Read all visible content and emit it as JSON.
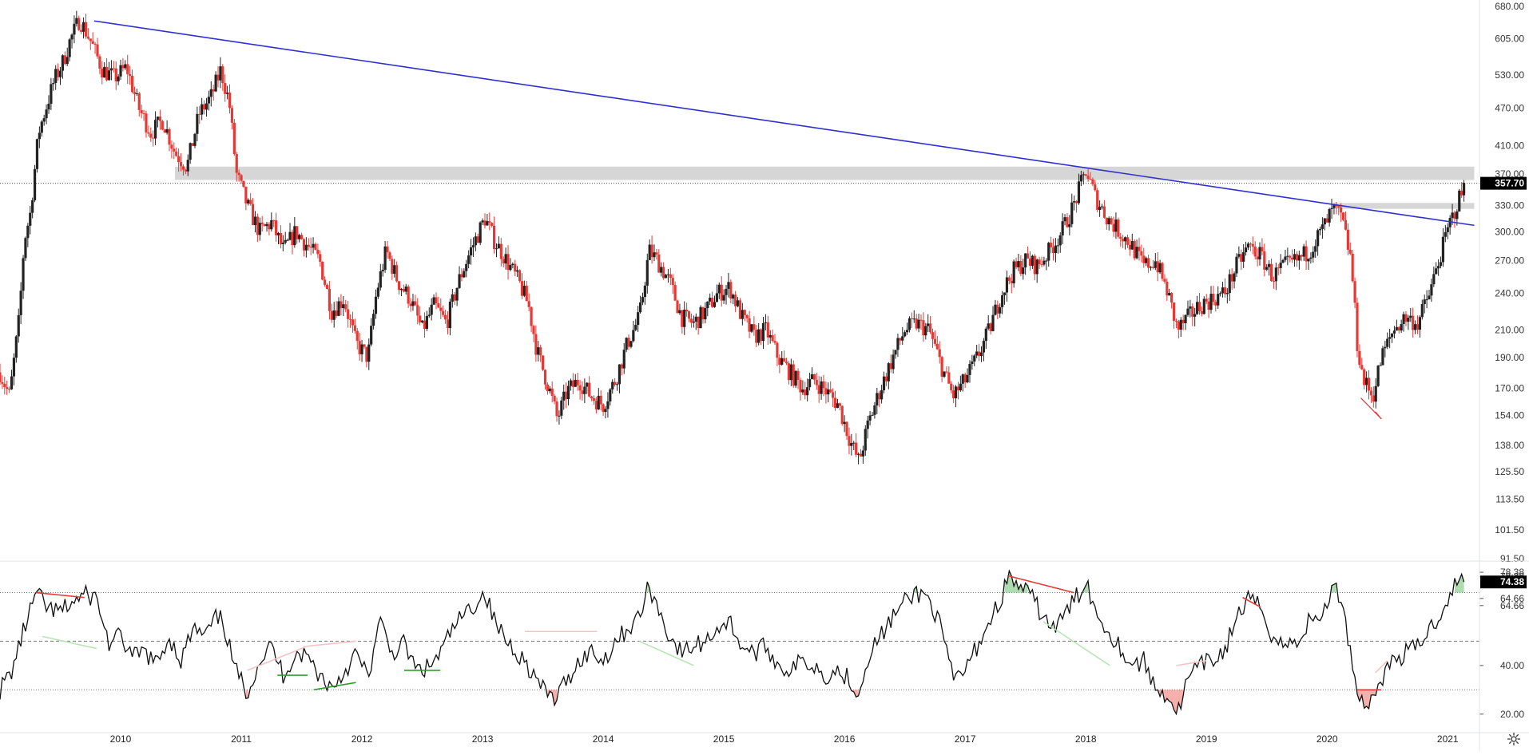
{
  "chart_data": [
    {
      "type": "candlestick",
      "symbol_scale": "log",
      "ylim": [
        91.5,
        680.0
      ],
      "y_ticks": [
        "680.00",
        "605.00",
        "530.00",
        "470.00",
        "410.00",
        "370.00",
        "330.00",
        "300.00",
        "270.00",
        "240.00",
        "210.00",
        "190.00",
        "170.00",
        "154.00",
        "138.00",
        "125.50",
        "113.50",
        "101.50",
        "91.50"
      ],
      "last_price": "357.70",
      "colors": {
        "up": "#222222",
        "down": "#e53935",
        "trendline": "#2f2fd0",
        "zone": "#c8c8c8",
        "bg": "#ffffff"
      },
      "x_ticks": [
        "2010",
        "2011",
        "2012",
        "2013",
        "2014",
        "2015",
        "2016",
        "2017",
        "2018",
        "2019",
        "2020",
        "2021"
      ],
      "weekly_closes": [
        [
          2009.0,
          180
        ],
        [
          2009.08,
          165
        ],
        [
          2009.16,
          220
        ],
        [
          2009.2,
          290
        ],
        [
          2009.25,
          320
        ],
        [
          2009.32,
          430
        ],
        [
          2009.38,
          470
        ],
        [
          2009.45,
          520
        ],
        [
          2009.52,
          555
        ],
        [
          2009.58,
          600
        ],
        [
          2009.66,
          650
        ],
        [
          2009.75,
          600
        ],
        [
          2009.85,
          540
        ],
        [
          2009.95,
          525
        ],
        [
          2010.05,
          545
        ],
        [
          2010.15,
          470
        ],
        [
          2010.25,
          430
        ],
        [
          2010.35,
          450
        ],
        [
          2010.45,
          400
        ],
        [
          2010.55,
          380
        ],
        [
          2010.65,
          460
        ],
        [
          2010.75,
          490
        ],
        [
          2010.83,
          540
        ],
        [
          2010.9,
          480
        ],
        [
          2010.96,
          370
        ],
        [
          2011.05,
          330
        ],
        [
          2011.15,
          300
        ],
        [
          2011.25,
          310
        ],
        [
          2011.35,
          280
        ],
        [
          2011.45,
          300
        ],
        [
          2011.55,
          285
        ],
        [
          2011.65,
          270
        ],
        [
          2011.75,
          225
        ],
        [
          2011.85,
          235
        ],
        [
          2011.95,
          200
        ],
        [
          2012.05,
          190
        ],
        [
          2012.12,
          240
        ],
        [
          2012.2,
          280
        ],
        [
          2012.3,
          250
        ],
        [
          2012.4,
          235
        ],
        [
          2012.5,
          210
        ],
        [
          2012.6,
          230
        ],
        [
          2012.7,
          215
        ],
        [
          2012.8,
          250
        ],
        [
          2012.9,
          280
        ],
        [
          2013.02,
          315
        ],
        [
          2013.1,
          290
        ],
        [
          2013.2,
          270
        ],
        [
          2013.3,
          250
        ],
        [
          2013.38,
          230
        ],
        [
          2013.45,
          195
        ],
        [
          2013.55,
          170
        ],
        [
          2013.62,
          152
        ],
        [
          2013.7,
          168
        ],
        [
          2013.8,
          175
        ],
        [
          2013.9,
          165
        ],
        [
          2014.0,
          160
        ],
        [
          2014.1,
          175
        ],
        [
          2014.2,
          200
        ],
        [
          2014.3,
          220
        ],
        [
          2014.38,
          280
        ],
        [
          2014.45,
          270
        ],
        [
          2014.55,
          250
        ],
        [
          2014.65,
          220
        ],
        [
          2014.75,
          215
        ],
        [
          2014.85,
          225
        ],
        [
          2014.95,
          240
        ],
        [
          2015.05,
          245
        ],
        [
          2015.15,
          220
        ],
        [
          2015.25,
          205
        ],
        [
          2015.35,
          210
        ],
        [
          2015.45,
          190
        ],
        [
          2015.55,
          180
        ],
        [
          2015.65,
          170
        ],
        [
          2015.75,
          175
        ],
        [
          2015.85,
          168
        ],
        [
          2015.95,
          160
        ],
        [
          2016.05,
          140
        ],
        [
          2016.12,
          130
        ],
        [
          2016.2,
          150
        ],
        [
          2016.3,
          170
        ],
        [
          2016.4,
          190
        ],
        [
          2016.5,
          210
        ],
        [
          2016.6,
          215
        ],
        [
          2016.7,
          210
        ],
        [
          2016.8,
          185
        ],
        [
          2016.9,
          165
        ],
        [
          2017.0,
          175
        ],
        [
          2017.1,
          190
        ],
        [
          2017.2,
          210
        ],
        [
          2017.3,
          240
        ],
        [
          2017.4,
          260
        ],
        [
          2017.5,
          270
        ],
        [
          2017.6,
          265
        ],
        [
          2017.7,
          280
        ],
        [
          2017.8,
          300
        ],
        [
          2017.9,
          330
        ],
        [
          2018.0,
          375
        ],
        [
          2018.08,
          340
        ],
        [
          2018.18,
          315
        ],
        [
          2018.28,
          300
        ],
        [
          2018.38,
          285
        ],
        [
          2018.48,
          265
        ],
        [
          2018.58,
          270
        ],
        [
          2018.68,
          240
        ],
        [
          2018.76,
          210
        ],
        [
          2018.85,
          220
        ],
        [
          2018.95,
          230
        ],
        [
          2019.05,
          235
        ],
        [
          2019.15,
          240
        ],
        [
          2019.25,
          265
        ],
        [
          2019.35,
          285
        ],
        [
          2019.45,
          275
        ],
        [
          2019.55,
          255
        ],
        [
          2019.65,
          265
        ],
        [
          2019.75,
          270
        ],
        [
          2019.85,
          280
        ],
        [
          2019.95,
          300
        ],
        [
          2020.05,
          325
        ],
        [
          2020.12,
          315
        ],
        [
          2020.2,
          270
        ],
        [
          2020.25,
          200
        ],
        [
          2020.3,
          175
        ],
        [
          2020.38,
          165
        ],
        [
          2020.45,
          190
        ],
        [
          2020.55,
          210
        ],
        [
          2020.65,
          220
        ],
        [
          2020.75,
          215
        ],
        [
          2020.85,
          240
        ],
        [
          2020.95,
          280
        ],
        [
          2021.02,
          310
        ],
        [
          2021.1,
          340
        ],
        [
          2021.15,
          357.7
        ]
      ],
      "trendline": {
        "from": [
          2009.78,
          645
        ],
        "to": [
          2021.22,
          307
        ]
      },
      "resistance_zones": [
        {
          "from_x": 2010.45,
          "to_x": 2021.22,
          "y_low": 362,
          "y_high": 380
        },
        {
          "from_x": 2020.05,
          "to_x": 2021.22,
          "y_low": 326,
          "y_high": 333
        }
      ]
    },
    {
      "type": "line",
      "indicator": "oscillator",
      "ylim": [
        15,
        82
      ],
      "y_ticks": [
        "78.38",
        "78.38",
        "74.38",
        "64.66",
        "64.66",
        "40.00",
        "20.00"
      ],
      "last_value": "74.38",
      "levels": [
        70,
        50,
        30
      ],
      "series_values": [
        [
          2009.0,
          30
        ],
        [
          2009.1,
          38
        ],
        [
          2009.2,
          55
        ],
        [
          2009.3,
          70
        ],
        [
          2009.4,
          63
        ],
        [
          2009.5,
          62
        ],
        [
          2009.6,
          66
        ],
        [
          2009.7,
          69
        ],
        [
          2009.8,
          68
        ],
        [
          2009.9,
          49
        ],
        [
          2010.0,
          52
        ],
        [
          2010.1,
          43
        ],
        [
          2010.2,
          46
        ],
        [
          2010.3,
          40
        ],
        [
          2010.4,
          52
        ],
        [
          2010.5,
          42
        ],
        [
          2010.6,
          55
        ],
        [
          2010.7,
          52
        ],
        [
          2010.8,
          60
        ],
        [
          2010.85,
          58
        ],
        [
          2010.95,
          38
        ],
        [
          2011.05,
          29
        ],
        [
          2011.15,
          42
        ],
        [
          2011.25,
          48
        ],
        [
          2011.35,
          36
        ],
        [
          2011.45,
          45
        ],
        [
          2011.55,
          44
        ],
        [
          2011.65,
          36
        ],
        [
          2011.75,
          31
        ],
        [
          2011.85,
          37
        ],
        [
          2011.95,
          45
        ],
        [
          2012.05,
          35
        ],
        [
          2012.15,
          58
        ],
        [
          2012.25,
          45
        ],
        [
          2012.35,
          49
        ],
        [
          2012.45,
          38
        ],
        [
          2012.55,
          39
        ],
        [
          2012.65,
          45
        ],
        [
          2012.75,
          55
        ],
        [
          2012.85,
          61
        ],
        [
          2012.95,
          66
        ],
        [
          2013.02,
          70
        ],
        [
          2013.1,
          58
        ],
        [
          2013.2,
          50
        ],
        [
          2013.3,
          45
        ],
        [
          2013.4,
          38
        ],
        [
          2013.5,
          30
        ],
        [
          2013.6,
          26
        ],
        [
          2013.7,
          34
        ],
        [
          2013.8,
          42
        ],
        [
          2013.9,
          46
        ],
        [
          2014.0,
          42
        ],
        [
          2014.1,
          50
        ],
        [
          2014.2,
          55
        ],
        [
          2014.3,
          60
        ],
        [
          2014.38,
          73
        ],
        [
          2014.45,
          64
        ],
        [
          2014.55,
          52
        ],
        [
          2014.65,
          45
        ],
        [
          2014.75,
          48
        ],
        [
          2014.85,
          50
        ],
        [
          2014.95,
          56
        ],
        [
          2015.05,
          58
        ],
        [
          2015.15,
          48
        ],
        [
          2015.25,
          45
        ],
        [
          2015.35,
          48
        ],
        [
          2015.45,
          40
        ],
        [
          2015.55,
          38
        ],
        [
          2015.65,
          42
        ],
        [
          2015.75,
          40
        ],
        [
          2015.85,
          36
        ],
        [
          2015.95,
          38
        ],
        [
          2016.05,
          34
        ],
        [
          2016.12,
          28
        ],
        [
          2016.2,
          45
        ],
        [
          2016.3,
          52
        ],
        [
          2016.4,
          60
        ],
        [
          2016.5,
          66
        ],
        [
          2016.6,
          70
        ],
        [
          2016.7,
          68
        ],
        [
          2016.8,
          55
        ],
        [
          2016.9,
          34
        ],
        [
          2017.0,
          38
        ],
        [
          2017.1,
          48
        ],
        [
          2017.2,
          58
        ],
        [
          2017.3,
          68
        ],
        [
          2017.35,
          76
        ],
        [
          2017.45,
          73
        ],
        [
          2017.55,
          68
        ],
        [
          2017.65,
          60
        ],
        [
          2017.75,
          55
        ],
        [
          2017.85,
          63
        ],
        [
          2017.95,
          70
        ],
        [
          2018.0,
          76
        ],
        [
          2018.08,
          62
        ],
        [
          2018.18,
          55
        ],
        [
          2018.28,
          48
        ],
        [
          2018.38,
          40
        ],
        [
          2018.48,
          42
        ],
        [
          2018.58,
          30
        ],
        [
          2018.68,
          28
        ],
        [
          2018.76,
          20
        ],
        [
          2018.85,
          35
        ],
        [
          2018.95,
          40
        ],
        [
          2019.05,
          42
        ],
        [
          2019.15,
          46
        ],
        [
          2019.25,
          60
        ],
        [
          2019.35,
          67
        ],
        [
          2019.45,
          64
        ],
        [
          2019.55,
          52
        ],
        [
          2019.65,
          48
        ],
        [
          2019.75,
          50
        ],
        [
          2019.85,
          58
        ],
        [
          2019.95,
          60
        ],
        [
          2020.05,
          72
        ],
        [
          2020.12,
          68
        ],
        [
          2020.2,
          44
        ],
        [
          2020.25,
          30
        ],
        [
          2020.3,
          24
        ],
        [
          2020.38,
          26
        ],
        [
          2020.45,
          35
        ],
        [
          2020.55,
          42
        ],
        [
          2020.65,
          45
        ],
        [
          2020.75,
          48
        ],
        [
          2020.85,
          55
        ],
        [
          2020.95,
          62
        ],
        [
          2021.02,
          70
        ],
        [
          2021.1,
          76
        ],
        [
          2021.15,
          74.38
        ]
      ],
      "divergence_lines": [
        {
          "from": [
            2009.3,
            70
          ],
          "to": [
            2009.7,
            68
          ],
          "color": "#e53935"
        },
        {
          "from": [
            2009.35,
            52
          ],
          "to": [
            2009.8,
            47
          ],
          "color": "#b9e4b5"
        },
        {
          "from": [
            2011.05,
            38
          ],
          "to": [
            2011.55,
            48
          ],
          "color": "#f4c4c4"
        },
        {
          "from": [
            2011.3,
            36
          ],
          "to": [
            2011.55,
            36
          ],
          "color": "#2e9e2e"
        },
        {
          "from": [
            2011.6,
            30
          ],
          "to": [
            2011.95,
            33
          ],
          "color": "#2e9e2e"
        },
        {
          "from": [
            2011.55,
            48
          ],
          "to": [
            2011.95,
            50
          ],
          "color": "#f4c4c4"
        },
        {
          "from": [
            2012.35,
            38
          ],
          "to": [
            2012.65,
            38
          ],
          "color": "#2e9e2e"
        },
        {
          "from": [
            2013.35,
            54
          ],
          "to": [
            2013.95,
            54
          ],
          "color": "#f4c4c4"
        },
        {
          "from": [
            2014.3,
            50
          ],
          "to": [
            2014.75,
            40
          ],
          "color": "#b9e4b5"
        },
        {
          "from": [
            2017.35,
            77
          ],
          "to": [
            2017.9,
            70
          ],
          "color": "#e53935"
        },
        {
          "from": [
            2017.65,
            58
          ],
          "to": [
            2018.2,
            40
          ],
          "color": "#b9e4b5"
        },
        {
          "from": [
            2018.75,
            40
          ],
          "to": [
            2019.0,
            42
          ],
          "color": "#f4c4c4"
        },
        {
          "from": [
            2019.3,
            68
          ],
          "to": [
            2019.45,
            64
          ],
          "color": "#e53935"
        },
        {
          "from": [
            2020.25,
            30
          ],
          "to": [
            2020.45,
            30
          ],
          "color": "#e53935"
        },
        {
          "from": [
            2020.4,
            37
          ],
          "to": [
            2020.5,
            42
          ],
          "color": "#f4c4c4"
        }
      ]
    }
  ],
  "ui": {
    "settings_icon": "gear-icon"
  }
}
